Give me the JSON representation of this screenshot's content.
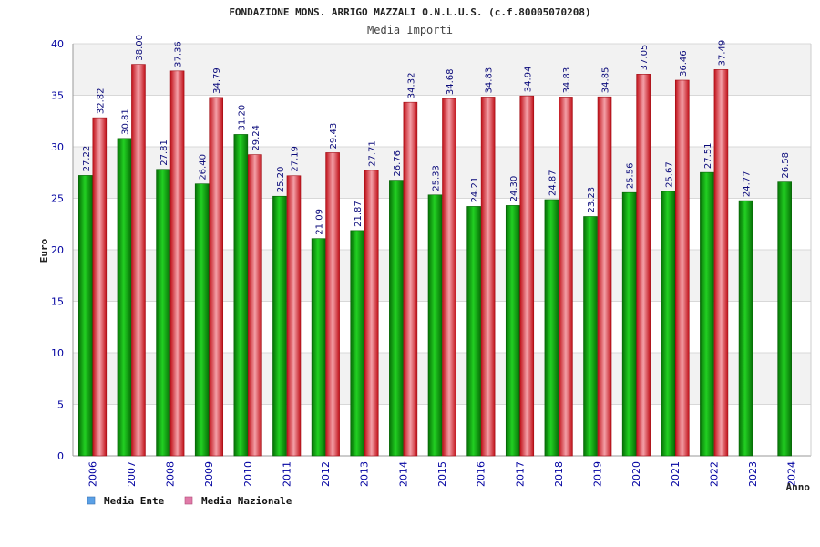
{
  "chart_data": {
    "type": "bar",
    "title": "FONDAZIONE MONS. ARRIGO MAZZALI O.N.L.U.S. (c.f.80005070208)",
    "subtitle": "Media Importi",
    "xlabel": "Anno",
    "ylabel": "Euro",
    "ylim": [
      0,
      40
    ],
    "yticks": [
      0,
      5,
      10,
      15,
      20,
      25,
      30,
      35,
      40
    ],
    "categories": [
      "2006",
      "2007",
      "2008",
      "2009",
      "2010",
      "2011",
      "2012",
      "2013",
      "2014",
      "2015",
      "2016",
      "2017",
      "2018",
      "2019",
      "2020",
      "2021",
      "2022",
      "2023",
      "2024"
    ],
    "series": [
      {
        "name": "Media Ente",
        "color": "#12b012",
        "values": [
          27.22,
          30.81,
          27.81,
          26.4,
          31.2,
          25.2,
          21.09,
          21.87,
          26.76,
          25.33,
          24.21,
          24.3,
          24.87,
          23.23,
          25.56,
          25.67,
          27.51,
          24.77,
          26.58
        ],
        "labels": [
          "27.22",
          "30.81",
          "27.81",
          "26.40",
          "31.20",
          "25.20",
          "21.09",
          "21.87",
          "26.76",
          "25.33",
          "24.21",
          "24.30",
          "24.87",
          "23.23",
          "25.56",
          "25.67",
          "27.51",
          "24.77",
          "26.58"
        ]
      },
      {
        "name": "Media Nazionale",
        "color": "#e8202a",
        "values": [
          32.82,
          38.0,
          37.36,
          34.79,
          29.24,
          27.19,
          29.43,
          27.71,
          34.32,
          34.68,
          34.83,
          34.94,
          34.83,
          34.85,
          37.05,
          36.46,
          37.49,
          null,
          null
        ],
        "labels": [
          "32.82",
          "38.00",
          "37.36",
          "34.79",
          "29.24",
          "27.19",
          "29.43",
          "27.71",
          "34.32",
          "34.68",
          "34.83",
          "34.94",
          "34.83",
          "34.85",
          "37.05",
          "36.46",
          "37.49",
          null,
          null
        ]
      }
    ],
    "legend": {
      "position": "bottom-left",
      "items": [
        {
          "label": "Media Ente",
          "color": "#5aa0e6"
        },
        {
          "label": "Media Nazionale",
          "color": "#e07aa8"
        }
      ]
    },
    "colors": {
      "axis_label": "#1a1aa0",
      "tick_label": "#0000a0",
      "grid_band": "#f2f2f2",
      "grid_line": "#d8d8d8"
    }
  }
}
